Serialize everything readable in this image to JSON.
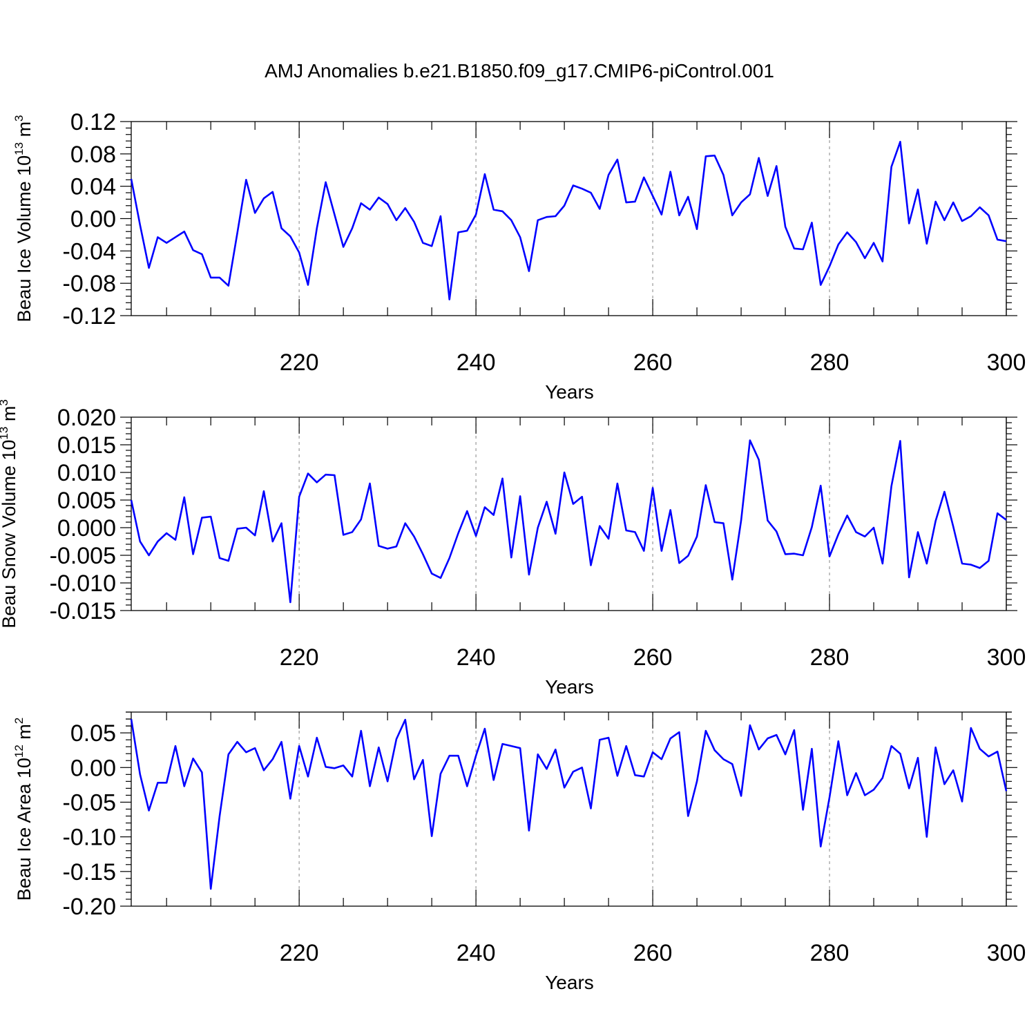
{
  "title": "AMJ Anomalies b.e21.B1850.f09_g17.CMIP6-piControl.001",
  "colors": {
    "line": "#0000ff",
    "grid": "#a0a0a0",
    "axis": "#000000"
  },
  "chart_data": [
    {
      "type": "line",
      "ylabel": "Beau Ice Volume 10",
      "ylabel_exp": "13",
      "ylabel_unit": " m",
      "ylabel_unit_exp": "3",
      "xlabel": "Years",
      "xlim": [
        201,
        300
      ],
      "ylim": [
        -0.12,
        0.12
      ],
      "xticks": [
        220,
        240,
        260,
        280,
        300
      ],
      "xtick_labels": [
        "220",
        "240",
        "260",
        "280",
        "300"
      ],
      "yticks": [
        -0.12,
        -0.08,
        -0.04,
        0.0,
        0.04,
        0.08,
        0.12
      ],
      "ytick_labels": [
        "-0.12",
        "-0.08",
        "-0.04",
        "0.00",
        "0.04",
        "0.08",
        "0.12"
      ],
      "grid": "x-dashed",
      "series": [
        {
          "name": "Beau Ice Volume",
          "x_start": 201,
          "values": [
            0.049,
            -0.008,
            -0.061,
            -0.023,
            -0.03,
            -0.023,
            -0.016,
            -0.039,
            -0.044,
            -0.073,
            -0.073,
            -0.083,
            -0.018,
            0.048,
            0.007,
            0.025,
            0.033,
            -0.012,
            -0.022,
            -0.042,
            -0.082,
            -0.012,
            0.045,
            0.005,
            -0.035,
            -0.012,
            0.019,
            0.011,
            0.026,
            0.018,
            -0.002,
            0.013,
            -0.004,
            -0.03,
            -0.034,
            0.003,
            -0.1,
            -0.017,
            -0.015,
            0.005,
            0.055,
            0.011,
            0.009,
            -0.002,
            -0.023,
            -0.065,
            -0.002,
            0.002,
            0.003,
            0.016,
            0.041,
            0.037,
            0.032,
            0.012,
            0.054,
            0.073,
            0.02,
            0.021,
            0.051,
            0.028,
            0.005,
            0.058,
            0.004,
            0.027,
            -0.013,
            0.077,
            0.078,
            0.054,
            0.004,
            0.02,
            0.03,
            0.075,
            0.028,
            0.065,
            -0.01,
            -0.037,
            -0.038,
            -0.005,
            -0.082,
            -0.059,
            -0.032,
            -0.017,
            -0.029,
            -0.049,
            -0.03,
            -0.053,
            0.064,
            0.095,
            -0.006,
            0.036,
            -0.031,
            0.021,
            -0.002,
            0.02,
            -0.003,
            0.003,
            0.014,
            0.004,
            -0.026,
            -0.028
          ]
        }
      ]
    },
    {
      "type": "line",
      "ylabel": "Beau Snow Volume 10",
      "ylabel_exp": "13",
      "ylabel_unit": " m",
      "ylabel_unit_exp": "3",
      "xlabel": "Years",
      "xlim": [
        201,
        300
      ],
      "ylim": [
        -0.015,
        0.02
      ],
      "xticks": [
        220,
        240,
        260,
        280,
        300
      ],
      "xtick_labels": [
        "220",
        "240",
        "260",
        "280",
        "300"
      ],
      "yticks": [
        -0.015,
        -0.01,
        -0.005,
        0.0,
        0.005,
        0.01,
        0.015,
        0.02
      ],
      "ytick_labels": [
        "-0.015",
        "-0.010",
        "-0.005",
        "0.000",
        "0.005",
        "0.010",
        "0.015",
        "0.020"
      ],
      "grid": "x-dashed",
      "series": [
        {
          "name": "Beau Snow Volume",
          "x_start": 201,
          "values": [
            0.005,
            -0.0025,
            -0.005,
            -0.0025,
            -0.001,
            -0.0022,
            0.0055,
            -0.0048,
            0.0018,
            0.002,
            -0.0055,
            -0.006,
            -0.0002,
            0.0,
            -0.0014,
            0.0066,
            -0.0025,
            0.0008,
            -0.0135,
            0.0056,
            0.0098,
            0.0082,
            0.0096,
            0.0095,
            -0.0013,
            -0.0008,
            0.0015,
            0.008,
            -0.0033,
            -0.0038,
            -0.0034,
            0.0008,
            -0.0016,
            -0.0048,
            -0.0083,
            -0.0091,
            -0.0055,
            -0.001,
            0.003,
            -0.0015,
            0.0037,
            0.0023,
            0.0089,
            -0.0054,
            0.0057,
            -0.0085,
            0.0,
            0.0047,
            -0.0011,
            0.01,
            0.0043,
            0.0056,
            -0.0068,
            0.0003,
            -0.002,
            0.008,
            -0.0005,
            -0.0008,
            -0.0042,
            0.0072,
            -0.0042,
            0.0032,
            -0.0064,
            -0.0051,
            -0.0016,
            0.0077,
            0.001,
            0.0008,
            -0.0094,
            0.0013,
            0.0158,
            0.0123,
            0.0013,
            -0.0007,
            -0.0048,
            -0.0047,
            -0.005,
            0.0001,
            0.0076,
            -0.0052,
            -0.0012,
            0.0022,
            -0.0008,
            -0.0016,
            0.0,
            -0.0065,
            0.0075,
            0.0157,
            -0.009,
            -0.0008,
            -0.0065,
            0.0012,
            0.0065,
            0.0002,
            -0.0065,
            -0.0067,
            -0.0073,
            -0.006,
            0.0026,
            0.0014
          ]
        }
      ]
    },
    {
      "type": "line",
      "ylabel": "Beau Ice Area 10",
      "ylabel_exp": "12",
      "ylabel_unit": " m",
      "ylabel_unit_exp": "2",
      "xlabel": "Years",
      "xlim": [
        201,
        300
      ],
      "ylim": [
        -0.2,
        0.08
      ],
      "xticks": [
        220,
        240,
        260,
        280,
        300
      ],
      "xtick_labels": [
        "220",
        "240",
        "260",
        "280",
        "300"
      ],
      "yticks": [
        -0.2,
        -0.15,
        -0.1,
        -0.05,
        0.0,
        0.05
      ],
      "ytick_labels": [
        "-0.20",
        "-0.15",
        "-0.10",
        "-0.05",
        "0.00",
        "0.05"
      ],
      "grid": "x-dashed",
      "series": [
        {
          "name": "Beau Ice Area",
          "x_start": 201,
          "values": [
            0.07,
            -0.01,
            -0.062,
            -0.022,
            -0.022,
            0.031,
            -0.027,
            0.013,
            -0.007,
            -0.175,
            -0.07,
            0.019,
            0.037,
            0.022,
            0.028,
            -0.004,
            0.012,
            0.037,
            -0.045,
            0.031,
            -0.013,
            0.043,
            0.001,
            -0.001,
            0.003,
            -0.013,
            0.053,
            -0.027,
            0.029,
            -0.02,
            0.041,
            0.069,
            -0.017,
            0.011,
            -0.099,
            -0.009,
            0.017,
            0.017,
            -0.027,
            0.017,
            0.056,
            -0.018,
            0.034,
            0.031,
            0.028,
            -0.091,
            0.019,
            -0.002,
            0.026,
            -0.029,
            -0.006,
            0.0,
            -0.059,
            0.04,
            0.043,
            -0.012,
            0.031,
            -0.011,
            -0.013,
            0.022,
            0.012,
            0.042,
            0.051,
            -0.07,
            -0.02,
            0.053,
            0.025,
            0.012,
            0.005,
            -0.041,
            0.061,
            0.026,
            0.042,
            0.047,
            0.019,
            0.054,
            -0.061,
            0.027,
            -0.114,
            -0.043,
            0.038,
            -0.04,
            -0.008,
            -0.04,
            -0.032,
            -0.015,
            0.031,
            0.02,
            -0.03,
            0.014,
            -0.1,
            0.029,
            -0.024,
            -0.004,
            -0.049,
            0.057,
            0.027,
            0.016,
            0.023,
            -0.034
          ]
        }
      ]
    }
  ]
}
